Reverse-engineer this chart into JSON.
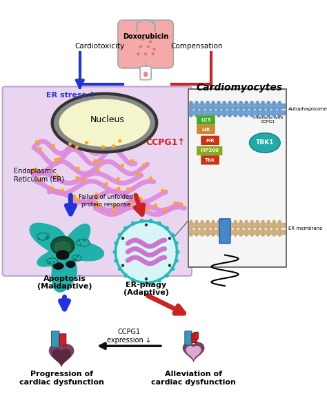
{
  "bg_color": "#ffffff",
  "cell_bg": "#ead5f0",
  "cell_border": "#c0a0d0",
  "blue_arrow": "#2233dd",
  "red_arrow": "#cc2222",
  "black_arrow": "#111111",
  "doxorubicin_label": "Doxorubicin",
  "cardiotoxicity_label": "Cardiotoxicity",
  "compensation_label": "Compensation",
  "er_stress_label": "ER stress ↑",
  "nucleus_label": "Nucleus",
  "er_label": "Endoplasmic\nReticulum (ER)",
  "failure_label": "Failure of unfolded\nprotein response",
  "apoptosis_label": "Apoptosis\n(Maldaptive)",
  "erphagy_label": "ER-phagy\n(Adaptive)",
  "cardiomyocytes_label": "Cardiomyocytes",
  "ccpg1_label": "CCPG1↑",
  "tbk1_label": "TBK1",
  "autophagosome_label": "Autophagosome",
  "er_membrane_label": "ER membrane",
  "interacts_label": "Interacts with\nCCPG1",
  "lc3_label": "LC3",
  "lir_label": "LIR",
  "fir_label": "FIR",
  "fip200_label": "FIP200",
  "tbk_small": "Tbk",
  "ccpg1_expr_label": "CCPG1\nexpression ↓",
  "progression_label": "Progression of\ncardiac dysfunction",
  "alleviation_label": "Alleviation of\ncardiac dysfunction",
  "nucleus_color": "#f5f5cc",
  "nucleus_ring": "#555555",
  "er_color": "#dd88dd",
  "er_dot_color": "#ffaa00",
  "apoptosis_color": "#20b2aa",
  "apoptosis_dark": "#0d7060",
  "apoptosis_black": "#111111",
  "erphagy_fill": "#d8f5f5",
  "erphagy_border": "#22bbbb",
  "erphagy_er": "#cc66cc",
  "inset_bg": "#f5f5f5",
  "lc3_color": "#44aa22",
  "lir_color": "#cc8833",
  "fir_color": "#cc3311",
  "fip200_color": "#88aa22",
  "tbk_color": "#cc3311",
  "tbk1_color": "#22aaaa",
  "membrane_color": "#6699cc",
  "er_mem_color": "#ccaa77",
  "heart_left_body": "#7a4558",
  "heart_left_inner": "#6a3545",
  "heart_right_body": "#7a4558",
  "heart_right_inner": "#cc99bb",
  "heart_aorta_blue": "#3399bb",
  "heart_aorta_red": "#cc2222"
}
